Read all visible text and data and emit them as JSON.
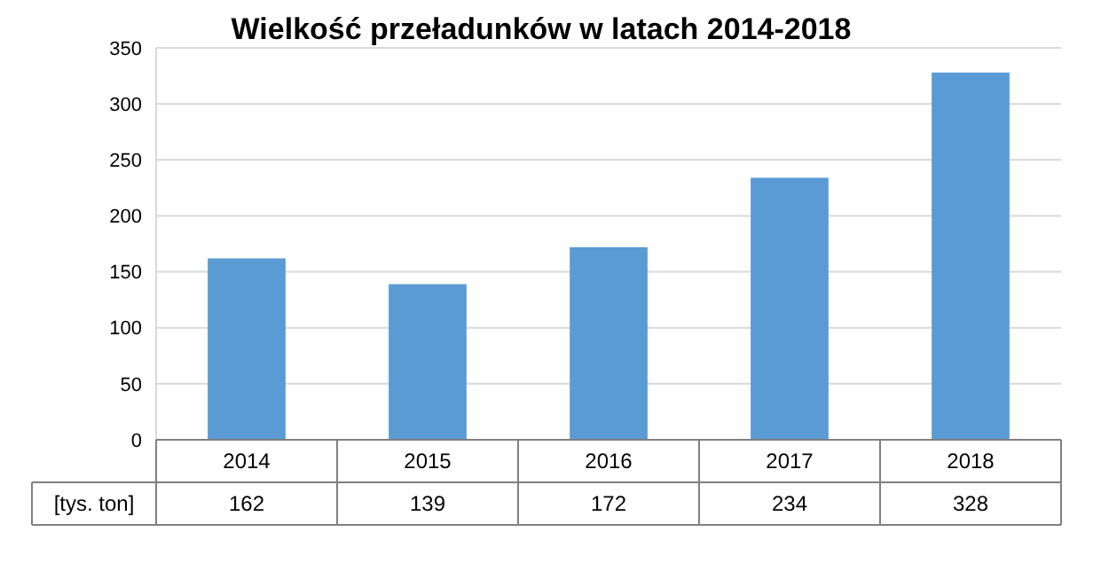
{
  "chart_data": {
    "type": "bar",
    "title": "Wielkość przeładunków  w latach 2014-2018",
    "ylabel": "[tys. ton]",
    "categories": [
      "2014",
      "2015",
      "2016",
      "2017",
      "2018"
    ],
    "values": [
      162,
      139,
      172,
      234,
      328
    ],
    "color": "#5b9bd5",
    "ylim": [
      0,
      350
    ],
    "yticks": [
      0,
      50,
      100,
      150,
      200,
      250,
      300,
      350
    ],
    "grid": "y",
    "data_labels": true
  }
}
